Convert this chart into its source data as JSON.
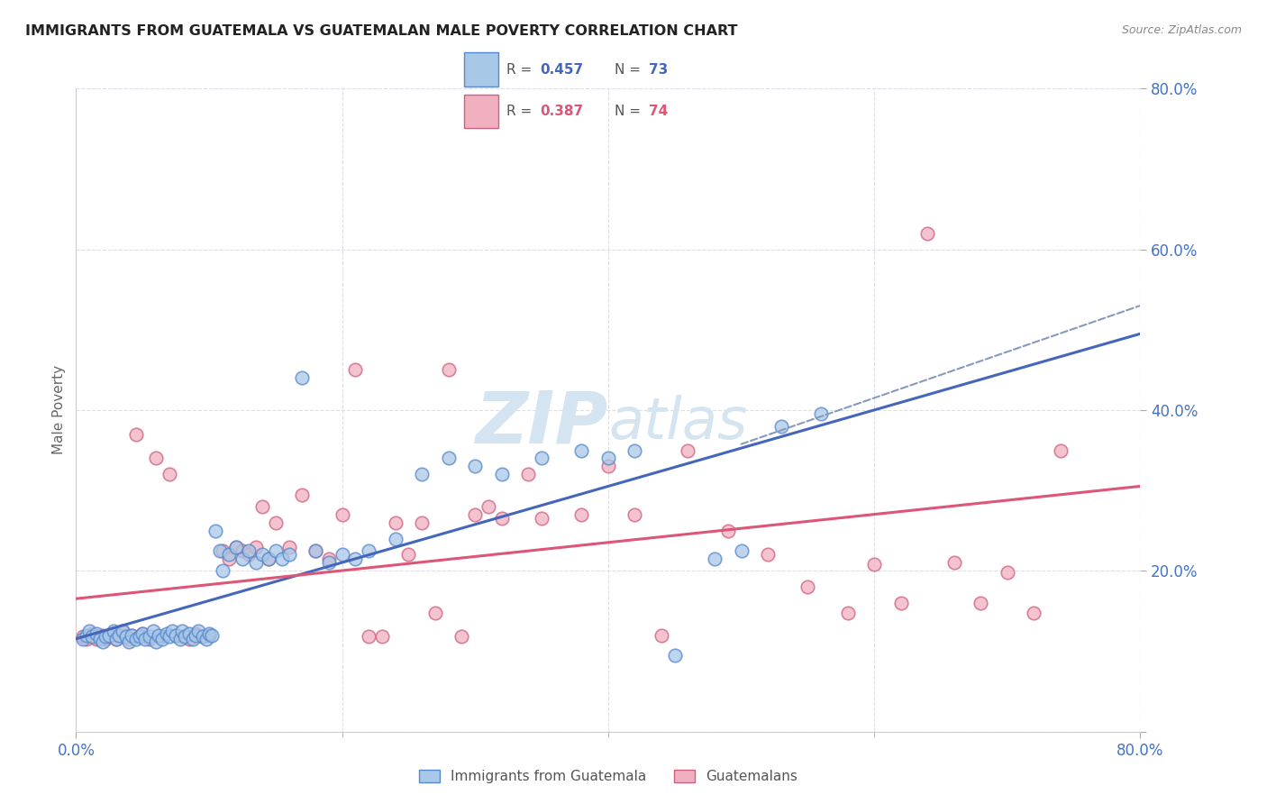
{
  "title": "IMMIGRANTS FROM GUATEMALA VS GUATEMALAN MALE POVERTY CORRELATION CHART",
  "source": "Source: ZipAtlas.com",
  "ylabel": "Male Poverty",
  "xlim": [
    0,
    0.8
  ],
  "ylim": [
    0,
    0.8
  ],
  "blue_color": "#a8c8e8",
  "blue_edge_color": "#5588cc",
  "pink_color": "#f0b0c0",
  "pink_edge_color": "#d06080",
  "blue_line_color": "#4466bb",
  "pink_line_color": "#dd5577",
  "dashed_line_color": "#8899bb",
  "watermark_color": "#d4e4f0",
  "title_color": "#222222",
  "axis_label_color": "#4472c4",
  "tick_color": "#4472c4",
  "background_color": "#ffffff",
  "grid_color": "#ddddee",
  "blue_scatter_x": [
    0.005,
    0.008,
    0.01,
    0.012,
    0.015,
    0.018,
    0.02,
    0.022,
    0.025,
    0.028,
    0.03,
    0.032,
    0.035,
    0.038,
    0.04,
    0.042,
    0.045,
    0.048,
    0.05,
    0.052,
    0.055,
    0.058,
    0.06,
    0.062,
    0.065,
    0.068,
    0.07,
    0.072,
    0.075,
    0.078,
    0.08,
    0.082,
    0.085,
    0.088,
    0.09,
    0.092,
    0.095,
    0.098,
    0.1,
    0.102,
    0.105,
    0.108,
    0.11,
    0.115,
    0.12,
    0.125,
    0.13,
    0.135,
    0.14,
    0.145,
    0.15,
    0.155,
    0.16,
    0.17,
    0.18,
    0.19,
    0.2,
    0.21,
    0.22,
    0.24,
    0.26,
    0.28,
    0.3,
    0.32,
    0.35,
    0.38,
    0.4,
    0.42,
    0.45,
    0.48,
    0.5,
    0.53,
    0.56
  ],
  "blue_scatter_y": [
    0.115,
    0.12,
    0.125,
    0.118,
    0.122,
    0.115,
    0.112,
    0.118,
    0.12,
    0.125,
    0.115,
    0.12,
    0.125,
    0.118,
    0.112,
    0.12,
    0.115,
    0.118,
    0.122,
    0.115,
    0.118,
    0.125,
    0.112,
    0.12,
    0.115,
    0.122,
    0.118,
    0.125,
    0.12,
    0.115,
    0.125,
    0.118,
    0.122,
    0.115,
    0.12,
    0.125,
    0.118,
    0.115,
    0.122,
    0.12,
    0.25,
    0.225,
    0.2,
    0.22,
    0.23,
    0.215,
    0.225,
    0.21,
    0.22,
    0.215,
    0.225,
    0.215,
    0.22,
    0.44,
    0.225,
    0.21,
    0.22,
    0.215,
    0.225,
    0.24,
    0.32,
    0.34,
    0.33,
    0.32,
    0.34,
    0.35,
    0.34,
    0.35,
    0.095,
    0.215,
    0.225,
    0.38,
    0.395
  ],
  "pink_scatter_x": [
    0.005,
    0.008,
    0.01,
    0.012,
    0.015,
    0.018,
    0.02,
    0.022,
    0.025,
    0.028,
    0.03,
    0.032,
    0.035,
    0.038,
    0.04,
    0.042,
    0.045,
    0.048,
    0.05,
    0.055,
    0.06,
    0.065,
    0.07,
    0.075,
    0.08,
    0.085,
    0.09,
    0.095,
    0.1,
    0.11,
    0.115,
    0.12,
    0.125,
    0.13,
    0.135,
    0.14,
    0.145,
    0.15,
    0.16,
    0.17,
    0.18,
    0.19,
    0.2,
    0.21,
    0.22,
    0.23,
    0.24,
    0.25,
    0.26,
    0.27,
    0.28,
    0.29,
    0.3,
    0.31,
    0.32,
    0.34,
    0.35,
    0.38,
    0.4,
    0.42,
    0.44,
    0.46,
    0.49,
    0.52,
    0.55,
    0.58,
    0.6,
    0.62,
    0.64,
    0.66,
    0.68,
    0.7,
    0.72,
    0.74
  ],
  "pink_scatter_y": [
    0.118,
    0.115,
    0.12,
    0.122,
    0.115,
    0.118,
    0.12,
    0.115,
    0.118,
    0.122,
    0.115,
    0.12,
    0.125,
    0.118,
    0.115,
    0.12,
    0.37,
    0.118,
    0.122,
    0.115,
    0.34,
    0.118,
    0.32,
    0.12,
    0.118,
    0.115,
    0.122,
    0.118,
    0.12,
    0.225,
    0.215,
    0.23,
    0.225,
    0.22,
    0.23,
    0.28,
    0.215,
    0.26,
    0.23,
    0.295,
    0.225,
    0.215,
    0.27,
    0.45,
    0.118,
    0.118,
    0.26,
    0.22,
    0.26,
    0.148,
    0.45,
    0.118,
    0.27,
    0.28,
    0.265,
    0.32,
    0.265,
    0.27,
    0.33,
    0.27,
    0.12,
    0.35,
    0.25,
    0.22,
    0.18,
    0.148,
    0.208,
    0.16,
    0.62,
    0.21,
    0.16,
    0.198,
    0.148,
    0.35
  ]
}
